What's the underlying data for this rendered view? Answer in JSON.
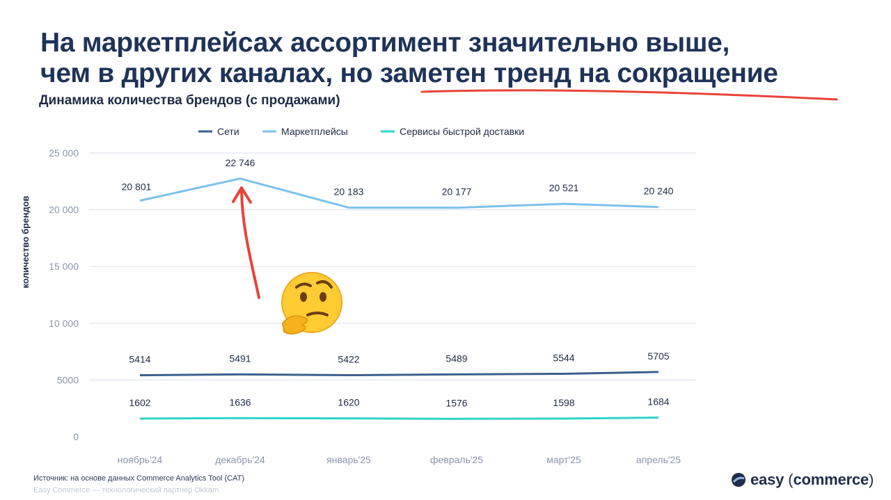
{
  "slide": {
    "title_line1": "На маркетплейсах ассортимент значительно выше,",
    "title_line2": "чем в других каналах, но заметен тренд на сокращение",
    "subtitle": "Динамика количества брендов (с продажами)"
  },
  "chart_data": {
    "type": "line",
    "title": "Динамика количества брендов (с продажами)",
    "xlabel": "",
    "ylabel": "количество брендов",
    "categories": [
      "ноябрь'24",
      "декабрь'24",
      "январь'25",
      "февраль'25",
      "март'25",
      "апрель'25"
    ],
    "ylim": [
      0,
      25000
    ],
    "yticks": [
      0,
      5000,
      10000,
      15000,
      20000,
      25000
    ],
    "ytick_labels": [
      "0",
      "5000",
      "10 000",
      "15 000",
      "20 000",
      "25 000"
    ],
    "grid": true,
    "legend": "top",
    "series": [
      {
        "name": "Сети",
        "color": "#3a5f8f",
        "values": [
          5414,
          5491,
          5422,
          5489,
          5544,
          5705
        ],
        "labels": [
          "5414",
          "5491",
          "5422",
          "5489",
          "5544",
          "5705"
        ]
      },
      {
        "name": "Маркетплейсы",
        "color": "#7cc1ea",
        "values": [
          20801,
          22746,
          20183,
          20177,
          20521,
          20240
        ],
        "labels": [
          "20 801",
          "22 746",
          "20 183",
          "20 177",
          "20 521",
          "20 240"
        ]
      },
      {
        "name": "Сервисы быстрой доставки",
        "color": "#2fd3c8",
        "values": [
          1602,
          1636,
          1620,
          1576,
          1598,
          1684
        ],
        "labels": [
          "1602",
          "1636",
          "1620",
          "1576",
          "1598",
          "1684"
        ]
      }
    ]
  },
  "annotations": {
    "underline_color": "#e8433a",
    "arrow_color": "#e8433a",
    "emoji": "🤔"
  },
  "footer": {
    "source": "Источник: на основе данных Commerce Analytics Tool (CAT)",
    "partner": "Easy Commerce — технологический партнер Okkam"
  },
  "logo": {
    "word1": "easy",
    "word2": "commerce",
    "icon": "easy-commerce-logo-icon"
  }
}
